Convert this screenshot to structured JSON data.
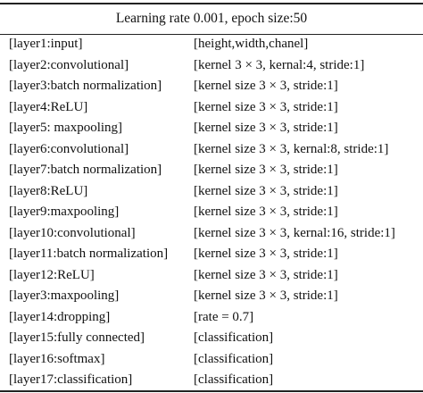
{
  "table": {
    "header": "Learning rate 0.001, epoch size:50",
    "rows": [
      {
        "layer": "[layer1:input]",
        "params": "[height,width,chanel]"
      },
      {
        "layer": "[layer2:convolutional]",
        "params": "[kernel 3 × 3, kernal:4, stride:1]"
      },
      {
        "layer": "[layer3:batch normalization]",
        "params": "[kernel size 3 × 3, stride:1]"
      },
      {
        "layer": "[layer4:ReLU]",
        "params": "[kernel size 3 × 3, stride:1]"
      },
      {
        "layer": "[layer5: maxpooling]",
        "params": "[kernel size 3 × 3, stride:1]"
      },
      {
        "layer": "[layer6:convolutional]",
        "params": "[kernel size 3 × 3, kernal:8, stride:1]"
      },
      {
        "layer": "[layer7:batch normalization]",
        "params": "[kernel size 3 × 3, stride:1]"
      },
      {
        "layer": "[layer8:ReLU]",
        "params": "[kernel size 3 × 3, stride:1]"
      },
      {
        "layer": "[layer9:maxpooling]",
        "params": "[kernel size 3 × 3, stride:1]"
      },
      {
        "layer": "[layer10:convolutional]",
        "params": "[kernel size 3 × 3, kernal:16, stride:1]"
      },
      {
        "layer": "[layer11:batch normalization]",
        "params": "[kernel size 3 × 3, stride:1]"
      },
      {
        "layer": "[layer12:ReLU]",
        "params": "[kernel size 3 × 3, stride:1]"
      },
      {
        "layer": "[layer3:maxpooling]",
        "params": "[kernel size 3 × 3, stride:1]"
      },
      {
        "layer": "[layer14:dropping]",
        "params": "[rate = 0.7]"
      },
      {
        "layer": "[layer15:fully connected]",
        "params": "[classification]"
      },
      {
        "layer": "[layer16:softmax]",
        "params": "[classification]"
      },
      {
        "layer": "[layer17:classification]",
        "params": "[classification]"
      }
    ]
  }
}
